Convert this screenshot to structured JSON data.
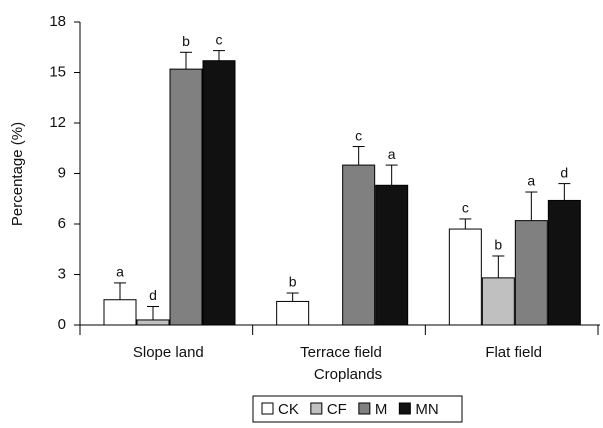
{
  "chart_data": {
    "type": "bar",
    "y_label": "Percentage (%)",
    "x_label": "Croplands",
    "categories": [
      "Slope land",
      "Terrace field",
      "Flat field"
    ],
    "series": [
      {
        "name": "CK",
        "color": "#ffffff",
        "values": [
          1.5,
          1.4,
          5.7
        ],
        "errors": [
          1.0,
          0.5,
          0.6
        ],
        "labels": [
          "a",
          "b",
          "c"
        ]
      },
      {
        "name": "CF",
        "color": "#c0c0c0",
        "values": [
          0.3,
          0,
          2.8
        ],
        "errors": [
          0.8,
          null,
          1.3
        ],
        "labels": [
          "d",
          null,
          "b"
        ]
      },
      {
        "name": "M",
        "color": "#808080",
        "values": [
          15.2,
          9.5,
          6.2
        ],
        "errors": [
          1.0,
          1.1,
          1.7
        ],
        "labels": [
          "b",
          "c",
          "a"
        ]
      },
      {
        "name": "MN",
        "color": "#111111",
        "values": [
          15.7,
          8.3,
          7.4
        ],
        "errors": [
          0.6,
          1.2,
          1.0
        ],
        "labels": [
          "c",
          "a",
          "d"
        ]
      }
    ],
    "ylim": [
      0,
      18
    ],
    "yticks": [
      0,
      3,
      6,
      9,
      12,
      15,
      18
    ],
    "grid": false,
    "legend": "bottom"
  }
}
